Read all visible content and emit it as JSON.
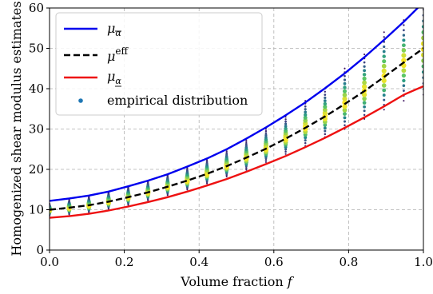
{
  "chart_data": {
    "type": "scatter",
    "title": "",
    "xlabel": "Volume fraction f",
    "xlabel_main": "Volume fraction ",
    "xlabel_var": "f",
    "ylabel": "Homogenized shear modulus estimates",
    "xlim": [
      0,
      1
    ],
    "ylim": [
      0,
      60
    ],
    "xticks": [
      "0.0",
      "0.2",
      "0.4",
      "0.6",
      "0.8",
      "1.0"
    ],
    "yticks": [
      "0",
      "10",
      "20",
      "30",
      "40",
      "50",
      "60"
    ],
    "grid": true,
    "legend_position": "top-left",
    "legend": {
      "upper": "μ",
      "eff_sym": "μ",
      "eff_sup": "eff",
      "lower": "μ",
      "empirical": "empirical distribution"
    },
    "x": [
      0,
      0.0526,
      0.1053,
      0.1579,
      0.2105,
      0.2632,
      0.3158,
      0.3684,
      0.4211,
      0.4737,
      0.5263,
      0.5789,
      0.6316,
      0.6842,
      0.7368,
      0.7895,
      0.8421,
      0.8947,
      0.9474,
      1.0
    ],
    "series": [
      {
        "name": "upper",
        "color": "#0000ee",
        "style": "solid",
        "values": [
          12.2,
          12.8,
          13.5,
          14.5,
          15.8,
          17.2,
          18.8,
          20.7,
          22.7,
          25.0,
          27.6,
          30.4,
          33.4,
          36.6,
          40.1,
          43.8,
          47.8,
          52.1,
          56.6,
          61.4
        ]
      },
      {
        "name": "effective",
        "color": "#000000",
        "style": "dashed",
        "values": [
          10.0,
          10.5,
          11.1,
          12.0,
          13.1,
          14.3,
          15.7,
          17.2,
          18.9,
          20.8,
          22.9,
          25.1,
          27.6,
          30.3,
          33.1,
          36.2,
          39.4,
          42.9,
          46.5,
          50.0
        ]
      },
      {
        "name": "lower",
        "color": "#ee1111",
        "style": "solid",
        "values": [
          8.0,
          8.4,
          9.0,
          9.8,
          10.8,
          11.9,
          13.1,
          14.5,
          16.0,
          17.6,
          19.4,
          21.3,
          23.3,
          25.5,
          27.8,
          30.3,
          32.9,
          35.6,
          38.5,
          40.6
        ]
      }
    ],
    "empirical": {
      "color": "#1f77b4",
      "colormap": "viridis",
      "low": [
        8.5,
        8.8,
        9.3,
        10.2,
        11.2,
        12.3,
        13.6,
        15.0,
        16.5,
        18.2,
        19.9,
        21.8,
        23.8,
        25.8,
        28.0,
        30.0,
        32.5,
        34.8,
        37.0,
        38.5
      ],
      "high": [
        11.5,
        12.5,
        13.3,
        14.5,
        15.8,
        17.2,
        18.8,
        20.6,
        22.6,
        24.8,
        27.2,
        30.0,
        33.0,
        37.0,
        40.0,
        45.0,
        48.5,
        54.0,
        57.0,
        61.0
      ]
    }
  }
}
